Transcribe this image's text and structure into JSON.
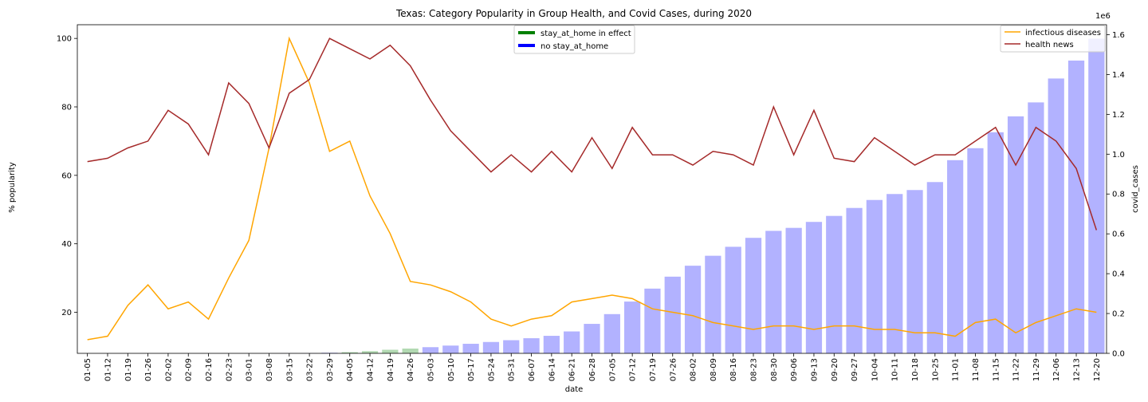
{
  "chart_data": {
    "type": "bar+line",
    "title": "Texas: Category Popularity in Group Health, and Covid Cases, during 2020",
    "xlabel": "date",
    "ylabel_left": "% popularity",
    "ylabel_right": "covid_cases",
    "right_axis_multiplier": "1e6",
    "left_ylim": [
      8,
      104
    ],
    "right_ylim": [
      0,
      1.65
    ],
    "left_ticks": [
      20,
      40,
      60,
      80,
      100
    ],
    "right_ticks": [
      0.0,
      0.2,
      0.4,
      0.6,
      0.8,
      1.0,
      1.2,
      1.4,
      1.6
    ],
    "categories": [
      "01-05",
      "01-12",
      "01-19",
      "01-26",
      "02-02",
      "02-09",
      "02-16",
      "02-23",
      "03-01",
      "03-08",
      "03-15",
      "03-22",
      "03-29",
      "04-05",
      "04-12",
      "04-19",
      "04-26",
      "05-03",
      "05-10",
      "05-17",
      "05-24",
      "05-31",
      "06-07",
      "06-14",
      "06-21",
      "06-28",
      "07-05",
      "07-12",
      "07-19",
      "07-26",
      "08-02",
      "08-09",
      "08-16",
      "08-23",
      "08-30",
      "09-06",
      "09-13",
      "09-20",
      "09-27",
      "10-04",
      "10-11",
      "10-18",
      "10-25",
      "11-01",
      "11-08",
      "11-15",
      "11-22",
      "11-29",
      "12-06",
      "12-13",
      "12-20"
    ],
    "bars": {
      "values": [
        0,
        0,
        0,
        0,
        0,
        0,
        0,
        0,
        0,
        0,
        0.0005,
        0.001,
        0.003,
        0.006,
        0.011,
        0.018,
        0.024,
        0.031,
        0.039,
        0.048,
        0.057,
        0.066,
        0.076,
        0.088,
        0.11,
        0.148,
        0.197,
        0.26,
        0.325,
        0.385,
        0.44,
        0.49,
        0.535,
        0.58,
        0.615,
        0.63,
        0.66,
        0.69,
        0.73,
        0.77,
        0.8,
        0.82,
        0.86,
        0.97,
        1.03,
        1.11,
        1.19,
        1.26,
        1.38,
        1.47,
        1.58
      ],
      "stay_at_home": [
        false,
        false,
        false,
        false,
        false,
        false,
        false,
        false,
        false,
        false,
        false,
        false,
        false,
        true,
        true,
        true,
        true,
        false,
        false,
        false,
        false,
        false,
        false,
        false,
        false,
        false,
        false,
        false,
        false,
        false,
        false,
        false,
        false,
        false,
        false,
        false,
        false,
        false,
        false,
        false,
        false,
        false,
        false,
        false,
        false,
        false,
        false,
        false,
        false,
        false,
        false
      ],
      "color_stay": "#7fbf7f",
      "color_no_stay": "#7f7fff"
    },
    "series": [
      {
        "name": "infectious diseases",
        "color": "#ffa500",
        "values": [
          12,
          13,
          22,
          28,
          21,
          23,
          18,
          30,
          41,
          68,
          100,
          87,
          67,
          70,
          54,
          43,
          29,
          28,
          26,
          23,
          18,
          16,
          18,
          19,
          23,
          24,
          25,
          24,
          21,
          20,
          19,
          17,
          16,
          15,
          16,
          16,
          15,
          16,
          16,
          15,
          15,
          14,
          14,
          13,
          17,
          18,
          14,
          17,
          19,
          21,
          20
        ]
      },
      {
        "name": "health news",
        "color": "#a52a2a",
        "values": [
          64,
          65,
          68,
          70,
          79,
          75,
          66,
          87,
          81,
          68,
          84,
          88,
          100,
          97,
          94,
          98,
          92,
          82,
          73,
          67,
          61,
          66,
          61,
          67,
          61,
          71,
          62,
          74,
          66,
          66,
          63,
          67,
          66,
          63,
          80,
          66,
          79,
          65,
          64,
          71,
          67,
          63,
          66,
          66,
          70,
          74,
          63,
          74,
          70,
          62,
          44
        ]
      }
    ],
    "legend_left": [
      {
        "label": "stay_at_home in effect",
        "color": "#008000"
      },
      {
        "label": "no stay_at_home",
        "color": "#0000ff"
      }
    ],
    "legend_right": [
      {
        "label": "infectious diseases",
        "color": "#ffa500"
      },
      {
        "label": "health news",
        "color": "#a52a2a"
      }
    ]
  }
}
